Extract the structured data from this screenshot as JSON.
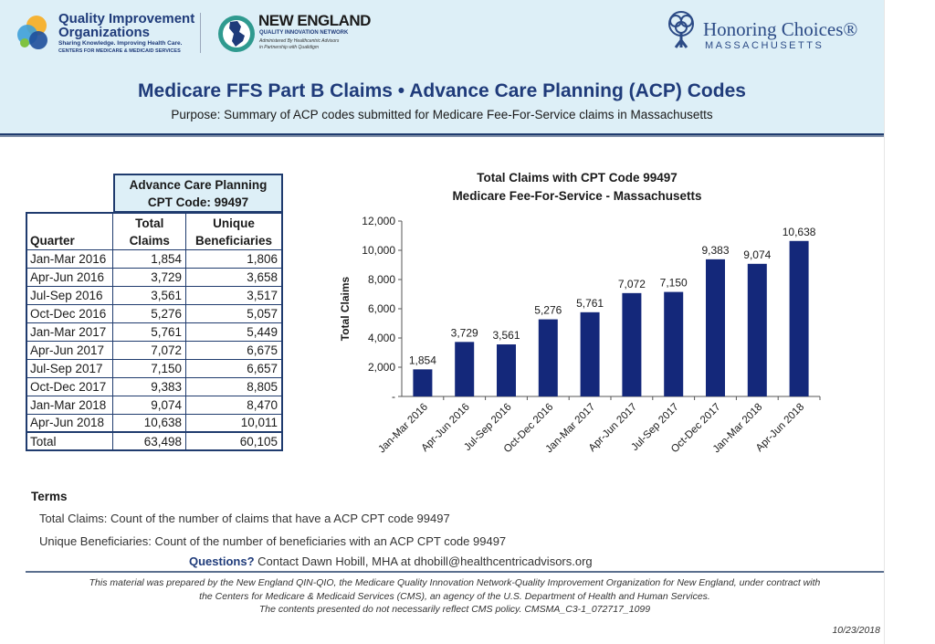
{
  "header": {
    "qio_logo": {
      "line1": "Quality Improvement",
      "line2": "Organizations",
      "tagline": "Sharing Knowledge. Improving Health Care.",
      "sub": "CENTERS FOR MEDICARE & MEDICAID SERVICES",
      "colors": [
        "#f5b335",
        "#3fa0d8",
        "#1f4f9a",
        "#7fc241"
      ]
    },
    "ne_logo": {
      "line1": "NEW ENGLAND",
      "line2": "QUALITY INNOVATION NETWORK",
      "line3": "Administered By Healthcentric Advisors",
      "line4": "in Partnership with Qualidigm"
    },
    "hc_logo": {
      "line1": "Honoring Choices®",
      "line2": "MASSACHUSETTS"
    },
    "title": "Medicare FFS Part B Claims • Advance Care Planning (ACP) Codes",
    "subtitle": "Purpose: Summary of ACP codes submitted for Medicare Fee-For-Service claims in Massachusetts"
  },
  "table": {
    "group_header_line1": "Advance Care Planning",
    "group_header_line2": "CPT Code: 99497",
    "col_quarter": "Quarter",
    "col_total_line1": "Total",
    "col_total_line2": "Claims",
    "col_unique_line1": "Unique",
    "col_unique_line2": "Beneficiaries",
    "rows": [
      {
        "quarter": "Jan-Mar 2016",
        "total": "1,854",
        "unique": "1,806"
      },
      {
        "quarter": "Apr-Jun 2016",
        "total": "3,729",
        "unique": "3,658"
      },
      {
        "quarter": "Jul-Sep 2016",
        "total": "3,561",
        "unique": "3,517"
      },
      {
        "quarter": "Oct-Dec 2016",
        "total": "5,276",
        "unique": "5,057"
      },
      {
        "quarter": "Jan-Mar 2017",
        "total": "5,761",
        "unique": "5,449"
      },
      {
        "quarter": "Apr-Jun 2017",
        "total": "7,072",
        "unique": "6,675"
      },
      {
        "quarter": "Jul-Sep 2017",
        "total": "7,150",
        "unique": "6,657"
      },
      {
        "quarter": "Oct-Dec 2017",
        "total": "9,383",
        "unique": "8,805"
      },
      {
        "quarter": "Jan-Mar 2018",
        "total": "9,074",
        "unique": "8,470"
      },
      {
        "quarter": "Apr-Jun 2018",
        "total": "10,638",
        "unique": "10,011"
      }
    ],
    "total_row": {
      "quarter": "Total",
      "total": "63,498",
      "unique": "60,105"
    }
  },
  "chart_data": {
    "type": "bar",
    "title": "Total Claims with CPT Code 99497",
    "subtitle": "Medicare Fee-For-Service - Massachusetts",
    "xlabel": "",
    "ylabel": "Total Claims",
    "categories": [
      "Jan-Mar 2016",
      "Apr-Jun 2016",
      "Jul-Sep 2016",
      "Oct-Dec 2016",
      "Jan-Mar 2017",
      "Apr-Jun 2017",
      "Jul-Sep 2017",
      "Oct-Dec 2017",
      "Jan-Mar 2018",
      "Apr-Jun 2018"
    ],
    "values": [
      1854,
      3729,
      3561,
      5276,
      5761,
      7072,
      7150,
      9383,
      9074,
      10638
    ],
    "value_labels": [
      "1,854",
      "3,729",
      "3,561",
      "5,276",
      "5,761",
      "7,072",
      "7,150",
      "9,383",
      "9,074",
      "10,638"
    ],
    "yticks": [
      0,
      2000,
      4000,
      6000,
      8000,
      10000,
      12000
    ],
    "ytick_labels": [
      "-",
      "2,000",
      "4,000",
      "6,000",
      "8,000",
      "10,000",
      "12,000"
    ],
    "ylim": [
      0,
      12000
    ],
    "bar_color": "#14287a",
    "grid": false,
    "legend": false
  },
  "terms": {
    "title": "Terms",
    "total_claims": "Total Claims:  Count of the number of claims that have a ACP CPT code 99497",
    "unique_beneficiaries": "Unique Beneficiaries:  Count of the number of beneficiaries with an ACP CPT code 99497",
    "questions_label": "Questions?",
    "questions_text": " Contact Dawn Hobill, MHA at dhobill@healthcentricadvisors.org"
  },
  "footer": {
    "line1": "This material was prepared by the New England QIN-QIO, the Medicare Quality Innovation Network-Quality Improvement Organization for New England, under contract with",
    "line2": "the Centers for Medicare & Medicaid Services (CMS), an agency of the U.S. Department of Health and Human Services.",
    "line3": "The contents presented do not necessarily reflect CMS policy. CMSMA_C3-1_072717_1099",
    "date": "10/23/2018"
  }
}
